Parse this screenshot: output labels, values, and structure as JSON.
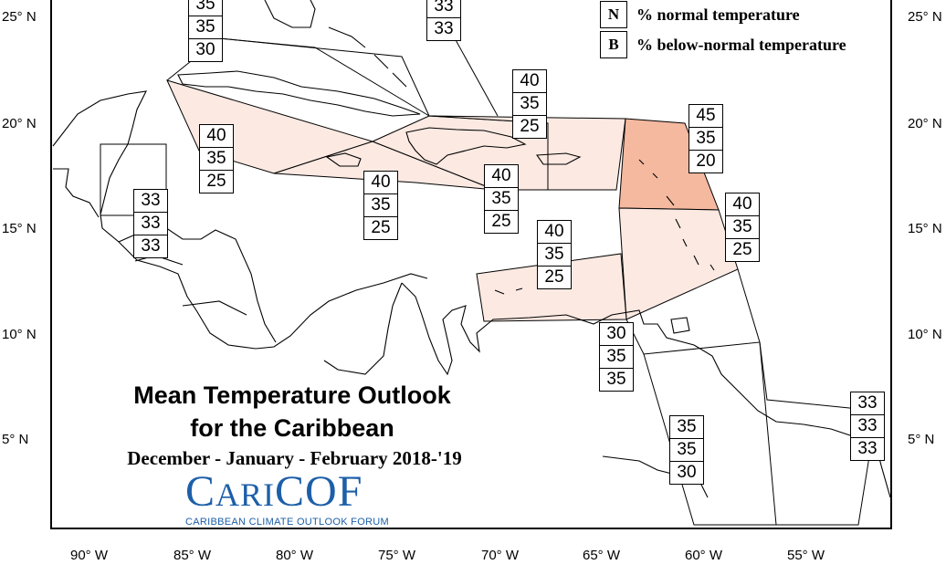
{
  "map": {
    "lat_labels": [
      "25° N",
      "20° N",
      "15° N",
      "10° N",
      "5° N"
    ],
    "lon_labels": [
      "90° W",
      "85° W",
      "80° W",
      "75° W",
      "70° W",
      "65° W",
      "60° W",
      "55° W"
    ],
    "colors": {
      "light_orange": "#fbe9e2",
      "medium_orange": "#f9d6c8",
      "dark_orange": "#f5b9a0",
      "border": "#000000"
    }
  },
  "legend": {
    "n_key": "N",
    "n_text": "% normal temperature",
    "b_key": "B",
    "b_text": "% below-normal temperature"
  },
  "title": {
    "line1": "Mean Temperature Outlook",
    "line2": "for the Caribbean",
    "period": "December - January - February 2018-'19"
  },
  "logo": {
    "name": "CariCOF",
    "subtitle": "CARIBBEAN CLIMATE OUTLOOK FORUM"
  },
  "regions": [
    {
      "id": "bahamas-north",
      "values": [
        "35",
        "35",
        "30"
      ]
    },
    {
      "id": "turks-caicos",
      "values": [
        "33",
        "33"
      ]
    },
    {
      "id": "cayman",
      "values": [
        "40",
        "35",
        "25"
      ]
    },
    {
      "id": "jamaica",
      "values": [
        "40",
        "35",
        "25"
      ]
    },
    {
      "id": "hispaniola",
      "values": [
        "40",
        "35",
        "25"
      ]
    },
    {
      "id": "puerto-rico",
      "values": [
        "40",
        "35",
        "25"
      ]
    },
    {
      "id": "leeward-islands",
      "values": [
        "45",
        "35",
        "20"
      ]
    },
    {
      "id": "windward-islands",
      "values": [
        "40",
        "35",
        "25"
      ]
    },
    {
      "id": "belize",
      "values": [
        "33",
        "33",
        "33"
      ]
    },
    {
      "id": "abc-islands",
      "values": [
        "40",
        "35",
        "25"
      ]
    },
    {
      "id": "trinidad",
      "values": [
        "30",
        "35",
        "35"
      ]
    },
    {
      "id": "guyana",
      "values": [
        "35",
        "35",
        "30"
      ]
    },
    {
      "id": "french-guiana",
      "values": [
        "33",
        "33",
        "33"
      ]
    }
  ]
}
